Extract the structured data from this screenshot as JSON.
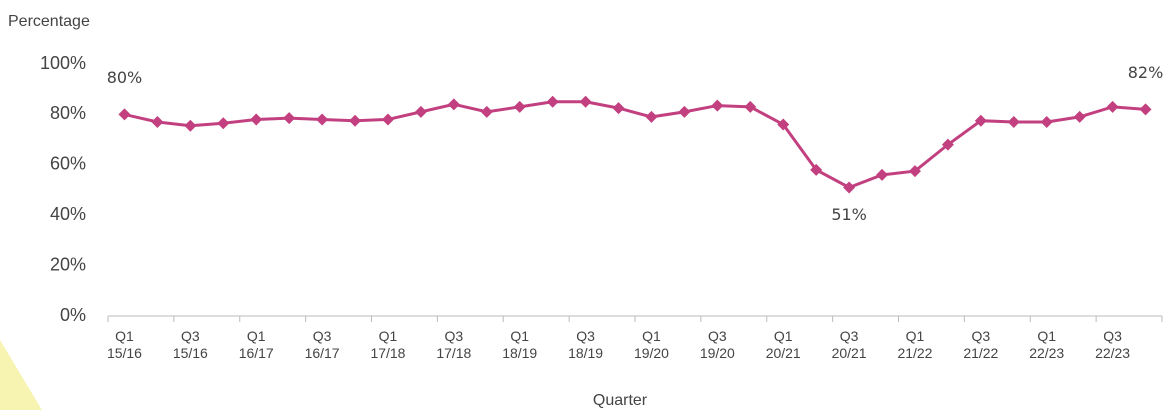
{
  "chart_data": {
    "type": "line",
    "y_label": "Percentage",
    "x_label": "Quarter",
    "categories": [
      "Q1 15/16",
      null,
      "Q3 15/16",
      null,
      "Q1 16/17",
      null,
      "Q3 16/17",
      null,
      "Q1 17/18",
      null,
      "Q3 17/18",
      null,
      "Q1 18/19",
      null,
      "Q3 18/19",
      null,
      "Q1 19/20",
      null,
      "Q3 19/20",
      null,
      "Q1 20/21",
      null,
      "Q3 20/21",
      null,
      "Q1 21/22",
      null,
      "Q3 21/22",
      null,
      "Q1 22/23",
      null,
      "Q3 22/23",
      null
    ],
    "series": [
      {
        "name": "Percentage",
        "color": "#c2407f",
        "values": [
          80,
          77,
          75.5,
          76.5,
          78,
          78.5,
          78,
          77.5,
          78,
          81,
          84,
          81,
          83,
          85,
          85,
          82.5,
          79,
          81,
          83.5,
          83,
          76,
          58,
          51,
          56,
          57.5,
          68,
          77.5,
          77,
          77,
          79,
          83,
          82
        ],
        "value_labels": [
          "80%",
          null,
          null,
          null,
          null,
          null,
          null,
          null,
          null,
          null,
          null,
          null,
          null,
          null,
          null,
          null,
          null,
          null,
          null,
          null,
          null,
          null,
          "51%",
          null,
          null,
          null,
          null,
          null,
          null,
          null,
          null,
          "82%"
        ]
      }
    ],
    "ylim": [
      0,
      100
    ],
    "yticks": [
      {
        "value": 0,
        "label": "0%"
      },
      {
        "value": 20,
        "label": "20%"
      },
      {
        "value": 40,
        "label": "40%"
      },
      {
        "value": 60,
        "label": "60%"
      },
      {
        "value": 80,
        "label": "80%"
      },
      {
        "value": 100,
        "label": "100%"
      }
    ],
    "grid": false
  }
}
